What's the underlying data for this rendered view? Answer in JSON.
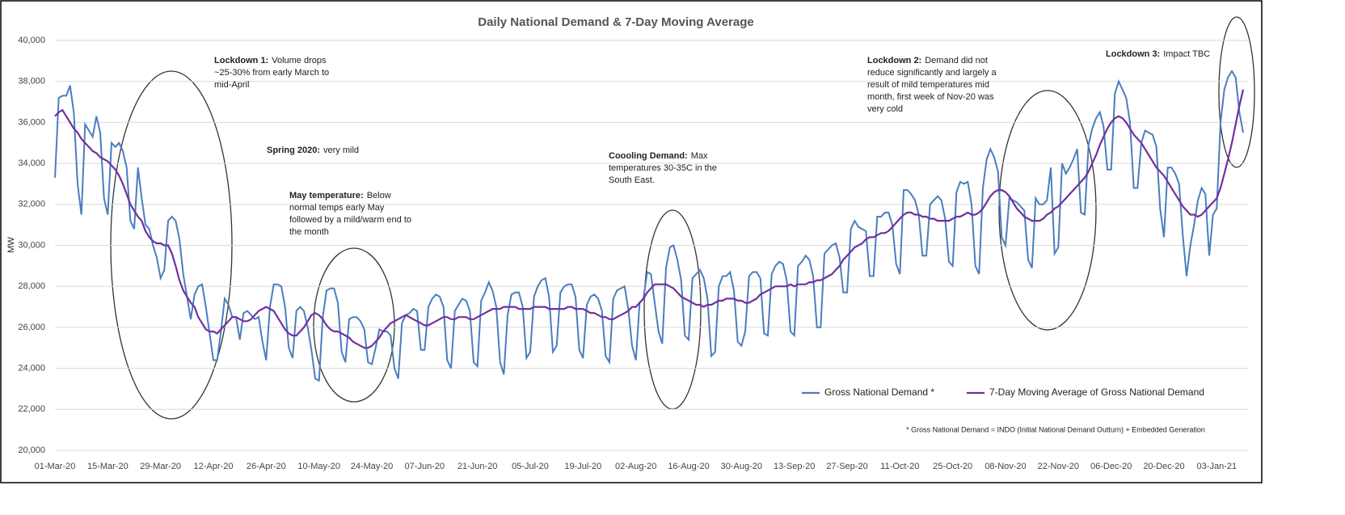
{
  "chart_data": {
    "type": "line",
    "title": "Daily National Demand & 7-Day Moving Average",
    "y_label": "MW",
    "footnote": "* Gross National Demand = INDO (Initial National Demand Outturn) + Embedded Generation",
    "ylim": [
      20000,
      40000
    ],
    "yticks": [
      {
        "value": 20000,
        "label": "20,000"
      },
      {
        "value": 22000,
        "label": "22,000"
      },
      {
        "value": 24000,
        "label": "24,000"
      },
      {
        "value": 26000,
        "label": "26,000"
      },
      {
        "value": 28000,
        "label": "28,000"
      },
      {
        "value": 30000,
        "label": "30,000"
      },
      {
        "value": 32000,
        "label": "32,000"
      },
      {
        "value": 34000,
        "label": "34,000"
      },
      {
        "value": 36000,
        "label": "36,000"
      },
      {
        "value": 38000,
        "label": "38,000"
      },
      {
        "value": 40000,
        "label": "40,000"
      }
    ],
    "grid": true,
    "legend": "lower right",
    "categories": [
      "01-Mar-20",
      null,
      null,
      null,
      null,
      null,
      null,
      null,
      null,
      null,
      null,
      null,
      null,
      null,
      "15-Mar-20",
      null,
      null,
      null,
      null,
      null,
      null,
      null,
      null,
      null,
      null,
      null,
      null,
      null,
      "29-Mar-20",
      null,
      null,
      null,
      null,
      null,
      null,
      null,
      null,
      null,
      null,
      null,
      null,
      null,
      "12-Apr-20",
      null,
      null,
      null,
      null,
      null,
      null,
      null,
      null,
      null,
      null,
      null,
      null,
      null,
      "26-Apr-20",
      null,
      null,
      null,
      null,
      null,
      null,
      null,
      null,
      null,
      null,
      null,
      null,
      null,
      "10-May-20",
      null,
      null,
      null,
      null,
      null,
      null,
      null,
      null,
      null,
      null,
      null,
      null,
      null,
      "24-May-20",
      null,
      null,
      null,
      null,
      null,
      null,
      null,
      null,
      null,
      null,
      null,
      null,
      null,
      "07-Jun-20",
      null,
      null,
      null,
      null,
      null,
      null,
      null,
      null,
      null,
      null,
      null,
      null,
      null,
      "21-Jun-20",
      null,
      null,
      null,
      null,
      null,
      null,
      null,
      null,
      null,
      null,
      null,
      null,
      null,
      "05-Jul-20",
      null,
      null,
      null,
      null,
      null,
      null,
      null,
      null,
      null,
      null,
      null,
      null,
      null,
      "19-Jul-20",
      null,
      null,
      null,
      null,
      null,
      null,
      null,
      null,
      null,
      null,
      null,
      null,
      null,
      "02-Aug-20",
      null,
      null,
      null,
      null,
      null,
      null,
      null,
      null,
      null,
      null,
      null,
      null,
      null,
      "16-Aug-20",
      null,
      null,
      null,
      null,
      null,
      null,
      null,
      null,
      null,
      null,
      null,
      null,
      null,
      "30-Aug-20",
      null,
      null,
      null,
      null,
      null,
      null,
      null,
      null,
      null,
      null,
      null,
      null,
      null,
      "13-Sep-20",
      null,
      null,
      null,
      null,
      null,
      null,
      null,
      null,
      null,
      null,
      null,
      null,
      null,
      "27-Sep-20",
      null,
      null,
      null,
      null,
      null,
      null,
      null,
      null,
      null,
      null,
      null,
      null,
      null,
      "11-Oct-20",
      null,
      null,
      null,
      null,
      null,
      null,
      null,
      null,
      null,
      null,
      null,
      null,
      null,
      "25-Oct-20",
      null,
      null,
      null,
      null,
      null,
      null,
      null,
      null,
      null,
      null,
      null,
      null,
      null,
      "08-Nov-20",
      null,
      null,
      null,
      null,
      null,
      null,
      null,
      null,
      null,
      null,
      null,
      null,
      null,
      "22-Nov-20",
      null,
      null,
      null,
      null,
      null,
      null,
      null,
      null,
      null,
      null,
      null,
      null,
      null,
      "06-Dec-20",
      null,
      null,
      null,
      null,
      null,
      null,
      null,
      null,
      null,
      null,
      null,
      null,
      null,
      "20-Dec-20",
      null,
      null,
      null,
      null,
      null,
      null,
      null,
      null,
      null,
      null,
      null,
      null,
      null,
      "03-Jan-21",
      null,
      null,
      null,
      null,
      null,
      null,
      null
    ],
    "series": [
      {
        "name": "Gross National Demand *",
        "color": "#4a7ebf",
        "values": [
          33300,
          37200,
          37300,
          37300,
          37800,
          36500,
          33000,
          31500,
          35900,
          35600,
          35300,
          36300,
          35500,
          32300,
          31500,
          35000,
          34800,
          35000,
          34600,
          33800,
          31200,
          30800,
          33800,
          32300,
          31000,
          30800,
          30000,
          29400,
          28400,
          28800,
          31200,
          31400,
          31200,
          30300,
          28600,
          27500,
          26400,
          27600,
          28000,
          28100,
          27000,
          25700,
          24400,
          24400,
          25800,
          27400,
          27100,
          26500,
          26500,
          25400,
          26700,
          26800,
          26600,
          26400,
          26500,
          25300,
          24400,
          27000,
          28100,
          28100,
          28000,
          27000,
          25000,
          24500,
          26800,
          27000,
          26800,
          26000,
          24900,
          23500,
          23400,
          26500,
          27800,
          27900,
          27900,
          27200,
          24800,
          24300,
          26400,
          26500,
          26500,
          26300,
          25900,
          24300,
          24200,
          25000,
          25900,
          25800,
          25800,
          25600,
          24000,
          23500,
          26200,
          26600,
          26700,
          26900,
          26800,
          24900,
          24900,
          27000,
          27400,
          27600,
          27500,
          27000,
          24400,
          24000,
          26800,
          27100,
          27400,
          27300,
          26800,
          24300,
          24100,
          27300,
          27700,
          28200,
          27800,
          27000,
          24300,
          23700,
          26600,
          27600,
          27700,
          27700,
          27000,
          24500,
          24800,
          27500,
          28000,
          28300,
          28400,
          27500,
          24800,
          25100,
          27700,
          28000,
          28100,
          28100,
          27500,
          24900,
          24500,
          27100,
          27500,
          27600,
          27400,
          26800,
          24600,
          24300,
          27400,
          27800,
          27900,
          28000,
          26900,
          25100,
          24400,
          27200,
          27400,
          28700,
          28600,
          27200,
          25800,
          25200,
          28900,
          29900,
          30000,
          29300,
          28300,
          25600,
          25400,
          28400,
          28600,
          28800,
          28400,
          27400,
          24600,
          24800,
          28000,
          28500,
          28500,
          28700,
          27800,
          25300,
          25100,
          25800,
          28500,
          28700,
          28700,
          28400,
          25700,
          25600,
          28600,
          29000,
          29200,
          29100,
          28300,
          25800,
          25600,
          29000,
          29200,
          29500,
          29300,
          28500,
          26000,
          26000,
          29600,
          29800,
          30000,
          30100,
          29400,
          27700,
          27700,
          30800,
          31200,
          30900,
          30800,
          30700,
          28500,
          28500,
          31400,
          31400,
          31600,
          31600,
          31000,
          29100,
          28600,
          32700,
          32700,
          32500,
          32200,
          31500,
          29500,
          29500,
          32000,
          32200,
          32400,
          32200,
          31300,
          29200,
          29000,
          32600,
          33100,
          33000,
          33100,
          32000,
          29000,
          28600,
          32800,
          34200,
          34700,
          34300,
          33600,
          30400,
          30000,
          32300,
          32200,
          32100,
          31900,
          31700,
          29300,
          28900,
          32300,
          32000,
          32000,
          32200,
          33800,
          29600,
          29900,
          34000,
          33500,
          33800,
          34200,
          34700,
          31600,
          31500,
          34900,
          35700,
          36200,
          36500,
          35800,
          33700,
          33700,
          37400,
          38000,
          37600,
          37200,
          36000,
          32800,
          32800,
          35000,
          35600,
          35500,
          35400,
          34800,
          31800,
          30400,
          33800,
          33800,
          33500,
          33000,
          30500,
          28500,
          30000,
          31000,
          32200,
          32800,
          32500,
          29500,
          31500,
          31800,
          36000,
          37600,
          38200,
          38500,
          38200,
          36500,
          35500
        ]
      },
      {
        "name": "7-Day Moving Average of Gross National Demand",
        "color": "#7030a0",
        "values": [
          36300,
          36500,
          36600,
          36300,
          36000,
          35700,
          35500,
          35200,
          35000,
          34800,
          34600,
          34500,
          34300,
          34200,
          34100,
          33900,
          33700,
          33400,
          33000,
          32500,
          32000,
          31700,
          31400,
          31200,
          30700,
          30400,
          30200,
          30100,
          30100,
          30000,
          30000,
          29600,
          29000,
          28300,
          27800,
          27500,
          27200,
          27000,
          26500,
          26200,
          25900,
          25800,
          25800,
          25700,
          25900,
          26100,
          26300,
          26500,
          26500,
          26400,
          26300,
          26300,
          26400,
          26600,
          26800,
          26900,
          27000,
          26900,
          26800,
          26500,
          26200,
          25900,
          25700,
          25600,
          25600,
          25800,
          26000,
          26300,
          26600,
          26700,
          26600,
          26400,
          26100,
          25900,
          25800,
          25800,
          25700,
          25600,
          25500,
          25300,
          25200,
          25100,
          25000,
          25000,
          25100,
          25300,
          25500,
          25800,
          26000,
          26200,
          26300,
          26400,
          26500,
          26600,
          26500,
          26400,
          26300,
          26200,
          26100,
          26100,
          26200,
          26300,
          26400,
          26500,
          26500,
          26400,
          26400,
          26500,
          26500,
          26500,
          26400,
          26400,
          26500,
          26600,
          26700,
          26800,
          26900,
          26900,
          26900,
          27000,
          27000,
          27000,
          27000,
          26900,
          26900,
          26900,
          26900,
          27000,
          27000,
          27000,
          27000,
          26900,
          26900,
          26900,
          26900,
          26900,
          27000,
          27000,
          26900,
          26900,
          26900,
          26800,
          26700,
          26700,
          26600,
          26500,
          26500,
          26400,
          26400,
          26500,
          26600,
          26700,
          26800,
          27000,
          27000,
          27200,
          27400,
          27700,
          27900,
          28100,
          28100,
          28100,
          28100,
          28000,
          27900,
          27700,
          27500,
          27400,
          27300,
          27200,
          27100,
          27100,
          27000,
          27100,
          27100,
          27200,
          27300,
          27300,
          27400,
          27400,
          27400,
          27300,
          27300,
          27200,
          27200,
          27300,
          27400,
          27600,
          27700,
          27800,
          27900,
          28000,
          28000,
          28000,
          28000,
          28100,
          28000,
          28100,
          28100,
          28100,
          28200,
          28200,
          28300,
          28300,
          28400,
          28500,
          28600,
          28800,
          29000,
          29300,
          29500,
          29700,
          29900,
          30000,
          30100,
          30300,
          30400,
          30400,
          30500,
          30600,
          30600,
          30700,
          30900,
          31100,
          31300,
          31500,
          31600,
          31600,
          31500,
          31500,
          31400,
          31400,
          31300,
          31300,
          31200,
          31200,
          31200,
          31200,
          31300,
          31400,
          31400,
          31500,
          31600,
          31500,
          31500,
          31600,
          31800,
          32100,
          32400,
          32600,
          32700,
          32700,
          32600,
          32400,
          32100,
          31800,
          31600,
          31400,
          31300,
          31200,
          31200,
          31200,
          31300,
          31500,
          31600,
          31800,
          31900,
          32100,
          32300,
          32500,
          32700,
          32900,
          33100,
          33300,
          33600,
          34000,
          34400,
          34900,
          35300,
          35700,
          36000,
          36200,
          36300,
          36200,
          36000,
          35700,
          35400,
          35200,
          35000,
          34700,
          34400,
          34100,
          33800,
          33600,
          33400,
          33100,
          32800,
          32500,
          32200,
          31900,
          31700,
          31500,
          31500,
          31400,
          31500,
          31700,
          31900,
          32100,
          32300,
          32800,
          33500,
          34200,
          35000,
          35900,
          36800,
          37600
        ]
      }
    ],
    "annotations": [
      {
        "title": "Lockdown 1:",
        "lines": [
          "Volume drops",
          "~25-30% from early March to",
          "mid-April"
        ]
      },
      {
        "title": "Spring 2020:",
        "lines": [
          "very mild"
        ]
      },
      {
        "title": "May temperature:",
        "lines": [
          "Below",
          "normal temps early May",
          "followed by a mild/warm end to",
          "the month"
        ]
      },
      {
        "title": "Coooling Demand:",
        "lines": [
          "Max",
          "temperatures 30-35C in the",
          "South East."
        ]
      },
      {
        "title": "Lockdown 2:",
        "lines": [
          "Demand did not",
          "reduce significantly and largely a",
          "result of mild temperatures mid",
          "month, first week of Nov-20 was",
          "very cold"
        ]
      },
      {
        "title": "Lockdown 3:",
        "lines": [
          "Impact TBC"
        ]
      }
    ]
  }
}
